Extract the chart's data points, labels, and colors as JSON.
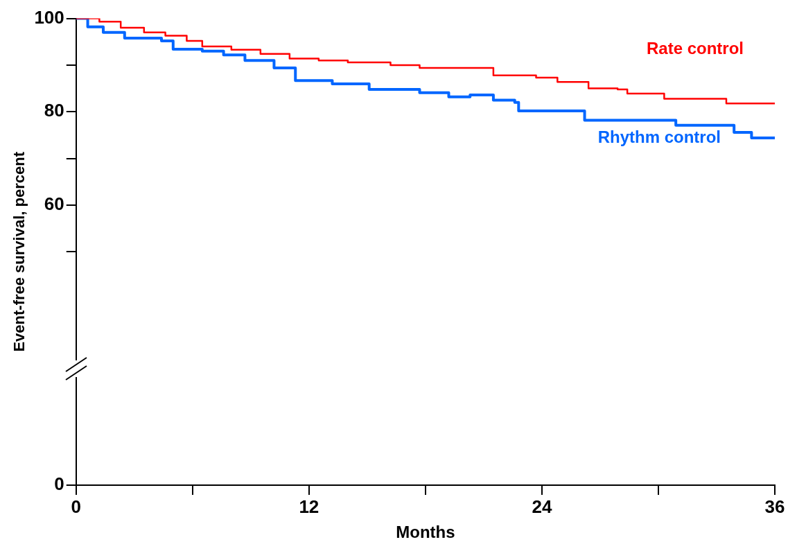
{
  "chart_data": {
    "type": "step",
    "xlabel": "Months",
    "ylabel": "Event-free survival, percent",
    "xlim": [
      0,
      36
    ],
    "xticks": [
      0,
      {
        "value": 6,
        "label": null
      },
      12,
      {
        "value": 18,
        "label": null
      },
      24,
      {
        "value": 30,
        "label": null
      },
      36
    ],
    "ylim": [
      0,
      100
    ],
    "yticks": [
      0,
      {
        "value": 50,
        "label": null
      },
      60,
      {
        "value": 70,
        "label": null
      },
      80,
      {
        "value": 90,
        "label": null
      },
      100
    ],
    "grid": false,
    "legend": false,
    "marker": "none",
    "line_style": "solid",
    "series": [
      {
        "name": "Rate control",
        "color": "#ff0000",
        "x": [
          0,
          1.2,
          2.3,
          3.5,
          4.6,
          5.7,
          6.5,
          8,
          9.5,
          11,
          12.5,
          14,
          16.2,
          17.7,
          20.3,
          21.5,
          23.7,
          24.8,
          26.4,
          27.9,
          28.4,
          30.3,
          33.5,
          36
        ],
        "values": [
          100,
          99.3,
          98,
          97,
          96.3,
          95.2,
          94,
          93.3,
          92.4,
          91.4,
          91,
          90.6,
          90,
          89.4,
          89.4,
          87.8,
          87.3,
          86.4,
          85,
          84.8,
          83.9,
          82.8,
          81.8,
          81.8
        ]
      },
      {
        "name": "Rhythm control",
        "color": "#0066ff",
        "x": [
          0,
          0.6,
          1.4,
          2.5,
          4.4,
          5,
          6.5,
          7.6,
          8.7,
          10.2,
          11.3,
          13.2,
          15.1,
          17.7,
          19.2,
          20.3,
          21.5,
          22.6,
          22.8,
          25.4,
          26.2,
          30.9,
          33.9,
          34.8,
          36
        ],
        "values": [
          100,
          98.2,
          97,
          95.8,
          95.2,
          93.4,
          93,
          92.2,
          91,
          89.4,
          86.7,
          86,
          84.8,
          84.1,
          83.2,
          83.6,
          82.5,
          82,
          80.2,
          80.2,
          78.2,
          77.1,
          75.6,
          74.4,
          74.4
        ]
      }
    ]
  }
}
